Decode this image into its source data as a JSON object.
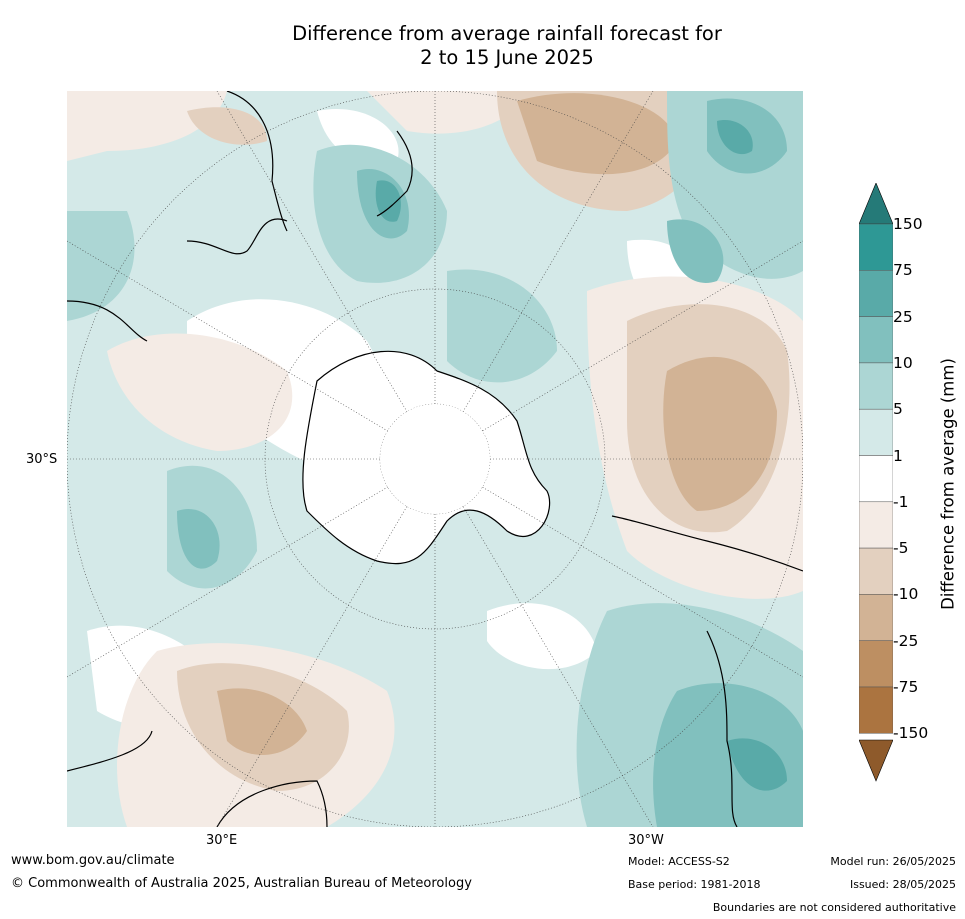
{
  "title_line1": "Difference from average rainfall forecast for",
  "title_line2": "2 to 15 June 2025",
  "map": {
    "projection": "south-polar",
    "labels": {
      "lat_30s": "30°S",
      "lon_30e": "30°E",
      "lon_30w": "30°W"
    }
  },
  "colorbar": {
    "label": "Difference from average (mm)",
    "ticks": [
      "150",
      "75",
      "25",
      "10",
      "5",
      "1",
      "-1",
      "-5",
      "-10",
      "-25",
      "-75",
      "-150"
    ],
    "colors": [
      "#257a78",
      "#2e9895",
      "#59aaa8",
      "#81c0be",
      "#acd6d4",
      "#d4e9e8",
      "#ffffff",
      "#f4ebe5",
      "#e3d0bf",
      "#d2b395",
      "#bd8f62",
      "#ab7440",
      "#8e5a2b"
    ]
  },
  "footer": {
    "website": "www.bom.gov.au/climate",
    "copyright": "© Commonwealth of Australia 2025, Australian Bureau of Meteorology",
    "model": "Model: ACCESS-S2",
    "base_period": "Base period: 1981-2018",
    "model_run": "Model run: 26/05/2025",
    "issued": "Issued: 28/05/2025",
    "disclaimer": "Boundaries are not considered authoritative"
  }
}
